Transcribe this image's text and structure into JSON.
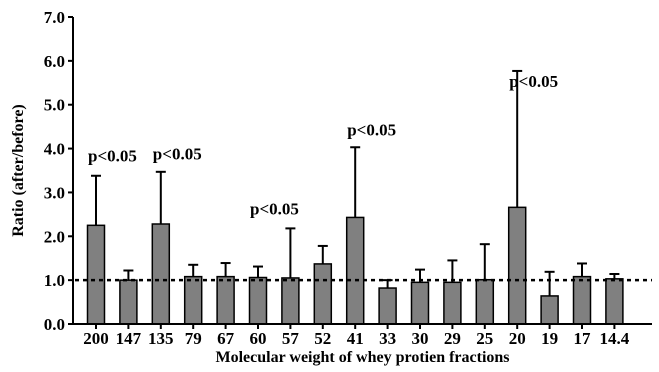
{
  "chart_data": {
    "type": "bar",
    "xlabel": "Molecular weight of whey protien fractions",
    "ylabel": "Ratio (after/before)",
    "ylim": [
      0,
      7
    ],
    "yticks": [
      "0.0",
      "1.0",
      "2.0",
      "3.0",
      "4.0",
      "5.0",
      "6.0",
      "7.0"
    ],
    "categories": [
      "200",
      "147",
      "135",
      "79",
      "67",
      "60",
      "57",
      "52",
      "41",
      "33",
      "30",
      "29",
      "25",
      "20",
      "19",
      "17",
      "14.4"
    ],
    "values": [
      2.25,
      1.0,
      2.28,
      1.08,
      1.08,
      1.06,
      1.05,
      1.37,
      2.43,
      0.82,
      0.95,
      0.95,
      1.01,
      2.66,
      0.64,
      1.08,
      1.03
    ],
    "error_upper": [
      3.38,
      1.22,
      3.47,
      1.35,
      1.39,
      1.31,
      2.18,
      1.78,
      4.03,
      1.0,
      1.24,
      1.45,
      1.82,
      5.77,
      1.19,
      1.38,
      1.14
    ],
    "reference_line": 1.0,
    "annotations": [
      {
        "text": "p<0.05",
        "category": "200",
        "y": 3.7
      },
      {
        "text": "p<0.05",
        "category": "135",
        "y": 3.75
      },
      {
        "text": "p<0.05",
        "category": "60",
        "y": 2.5
      },
      {
        "text": "p<0.05",
        "category": "41",
        "y": 4.3
      },
      {
        "text": "p<0.05",
        "category": "20",
        "y": 5.4
      }
    ],
    "colors": {
      "bar_fill": "#808080",
      "bar_stroke": "#000000",
      "axis": "#000000"
    }
  }
}
